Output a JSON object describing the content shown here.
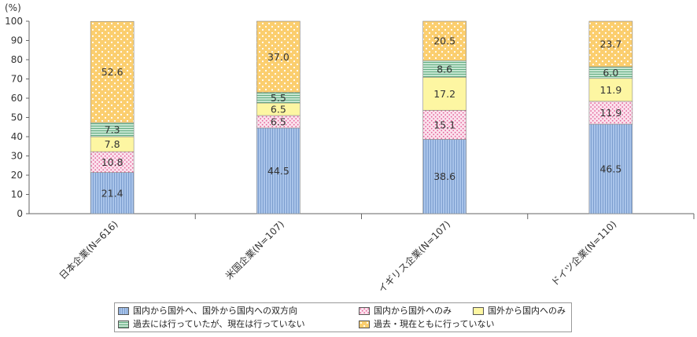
{
  "chart_data": {
    "type": "bar",
    "stacked": true,
    "orientation": "vertical",
    "unit_label": "(%)",
    "ylim": [
      0,
      100
    ],
    "y_ticks": [
      "0",
      "10",
      "20",
      "30",
      "40",
      "50",
      "60",
      "70",
      "80",
      "90",
      "100"
    ],
    "categories": [
      "日本企業(N=616)",
      "米国企業(N=107)",
      "イギリス企業(N=107)",
      "ドイツ企業(N=110)"
    ],
    "series": [
      {
        "name": "国内から国外へ、国外から国内への双方向",
        "values": [
          21.4,
          44.5,
          38.6,
          46.5
        ],
        "labels": [
          "21.4",
          "44.5",
          "38.6",
          "46.5"
        ],
        "color": "#a9c4ea"
      },
      {
        "name": "国内から国外へのみ",
        "values": [
          10.8,
          6.5,
          15.1,
          11.9
        ],
        "labels": [
          "10.8",
          "6.5",
          "15.1",
          "11.9"
        ],
        "color": "#f6cfe0"
      },
      {
        "name": "国外から国内へのみ",
        "values": [
          7.8,
          6.5,
          17.2,
          11.9
        ],
        "labels": [
          "7.8",
          "6.5",
          "17.2",
          "11.9"
        ],
        "color": "#fdf6a2"
      },
      {
        "name": "過去には行っていたが、現在は行っていない",
        "values": [
          7.3,
          5.5,
          8.6,
          6.0
        ],
        "labels": [
          "7.3",
          "5.5",
          "8.6",
          "6.0"
        ],
        "color": "#b4dcc2"
      },
      {
        "name": "過去・現在ともに行っていない",
        "values": [
          52.6,
          37.0,
          20.5,
          23.7
        ],
        "labels": [
          "52.6",
          "37.0",
          "20.5",
          "23.7"
        ],
        "color": "#fbce6e"
      }
    ],
    "grid": false,
    "legend_position": "bottom"
  }
}
